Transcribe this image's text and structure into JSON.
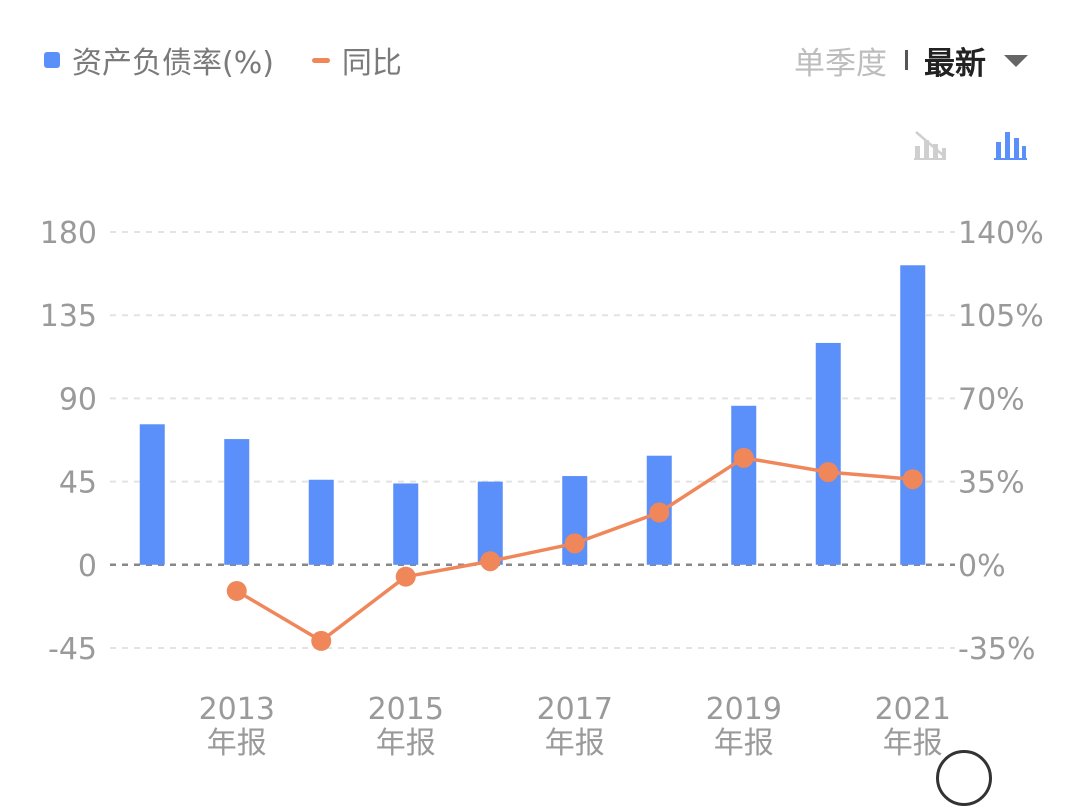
{
  "legend": {
    "series1_label": "资产负债率(%)",
    "series2_label": "同比"
  },
  "period": {
    "option_label": "单季度",
    "active_label": "最新"
  },
  "icons": {
    "line_toggle": "line-chart-off-icon",
    "bar_toggle": "bar-chart-icon",
    "dropdown": "chevron-down-icon"
  },
  "colors": {
    "bar": "#5B8FF9",
    "line": "#F0875A",
    "axis_text": "#9a9a9a",
    "grid": "#e3e3e3",
    "zero_line": "#888888"
  },
  "chart_data": {
    "type": "bar+line",
    "categories": [
      "2012年报",
      "2013年报",
      "2014年报",
      "2015年报",
      "2016年报",
      "2017年报",
      "2018年报",
      "2019年报",
      "2020年报",
      "2021年报"
    ],
    "x_tick_labels": [
      {
        "index": 1,
        "year": "2013",
        "suffix": "年报"
      },
      {
        "index": 3,
        "year": "2015",
        "suffix": "年报"
      },
      {
        "index": 5,
        "year": "2017",
        "suffix": "年报"
      },
      {
        "index": 7,
        "year": "2019",
        "suffix": "年报"
      },
      {
        "index": 9,
        "year": "2021",
        "suffix": "年报"
      }
    ],
    "series": [
      {
        "name": "资产负债率(%)",
        "type": "bar",
        "axis": "left",
        "values": [
          76,
          68,
          46,
          44,
          45,
          48,
          59,
          86,
          120,
          162
        ]
      },
      {
        "name": "同比",
        "type": "line",
        "axis": "right",
        "values": [
          null,
          -11,
          -32,
          -5,
          1.5,
          9,
          22,
          45,
          39,
          36
        ]
      }
    ],
    "y_left": {
      "ticks": [
        "180",
        "135",
        "90",
        "45",
        "0",
        "-45"
      ],
      "values": [
        180,
        135,
        90,
        45,
        0,
        -45
      ],
      "lim": [
        -45,
        180
      ]
    },
    "y_right": {
      "ticks": [
        "140%",
        "105%",
        "70%",
        "35%",
        "0%",
        "-35%"
      ],
      "values": [
        140,
        105,
        70,
        35,
        0,
        -35
      ],
      "lim": [
        -35,
        140
      ]
    },
    "grid": true,
    "legend_position": "top-left"
  }
}
